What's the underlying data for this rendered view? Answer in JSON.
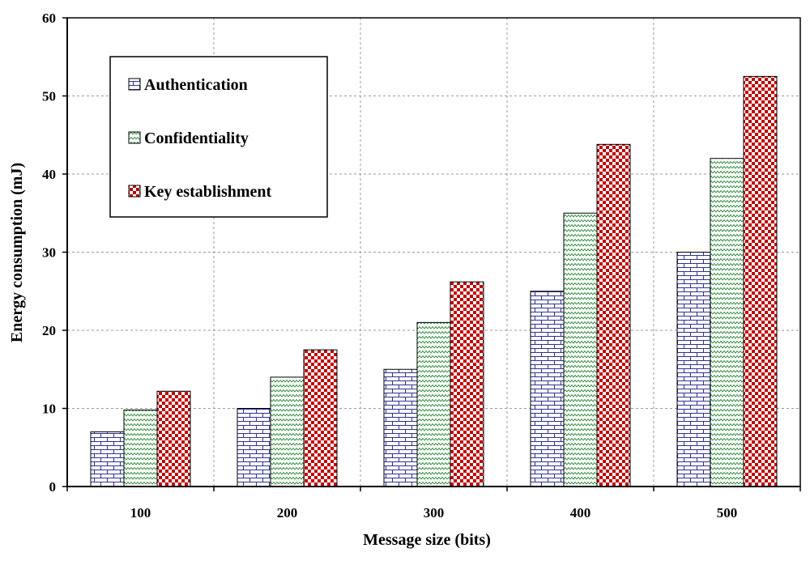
{
  "chart_data": {
    "type": "bar",
    "title": "",
    "xlabel": "Message size (bits)",
    "ylabel": "Energy consumption (mJ)",
    "categories": [
      "100",
      "200",
      "300",
      "400",
      "500"
    ],
    "ylim": [
      0,
      60
    ],
    "yticks": [
      "0",
      "10",
      "20",
      "30",
      "40",
      "50",
      "60"
    ],
    "grid": true,
    "legend_position": "top-left",
    "series": [
      {
        "name": "Authentication",
        "values": [
          7,
          10,
          15,
          25,
          30
        ],
        "color": "#2e3192",
        "pattern": "brick"
      },
      {
        "name": "Confidentiality",
        "values": [
          9.8,
          14,
          21,
          35,
          42
        ],
        "color": "#2e8b3a",
        "pattern": "zigzag"
      },
      {
        "name": "Key establishment",
        "values": [
          12.2,
          17.5,
          26.2,
          43.8,
          52.5
        ],
        "color": "#c00000",
        "pattern": "checker"
      }
    ]
  }
}
